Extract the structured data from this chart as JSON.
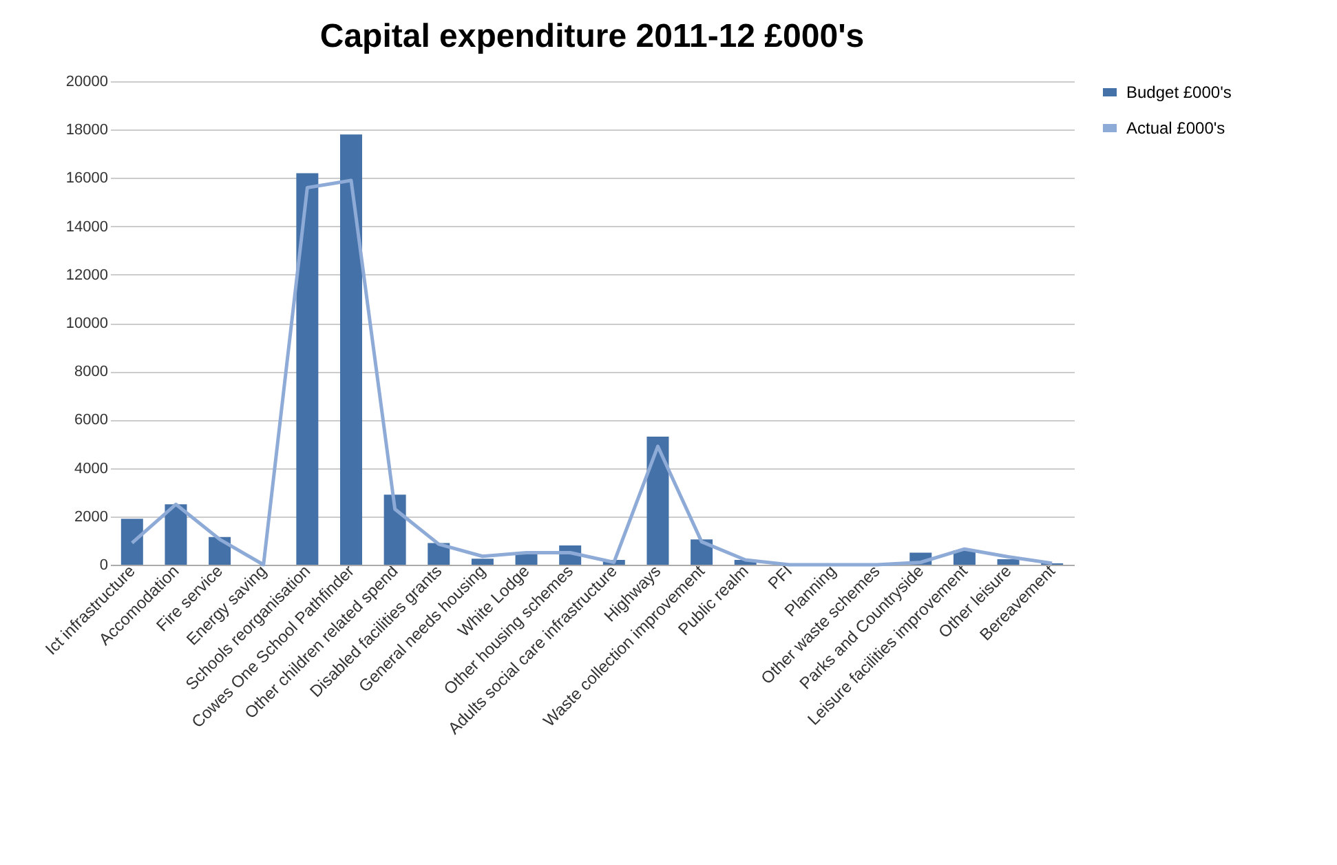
{
  "chart_data": {
    "type": "bar",
    "title": "Capital expenditure 2011-12 £000's",
    "categories": [
      "Ict infrastructure",
      "Accomodation",
      "Fire service",
      "Energy saving",
      "Schools reorganisation",
      "Cowes One School Pathfinder",
      "Other children related spend",
      "Disabled facilities grants",
      "General needs housing",
      "White Lodge",
      "Other housing schemes",
      "Adults social care infrastructure",
      "Highways",
      "Waste collection improvement",
      "Public realm",
      "PFI",
      "Planning",
      "Other waste schemes",
      "Parks and Countryside",
      "Leisure facilities improvement",
      "Other leisure",
      "Bereavement"
    ],
    "series": [
      {
        "name": "Budget £000's",
        "color": "#4472a8",
        "values": [
          1900,
          2500,
          1150,
          0,
          16200,
          17800,
          2900,
          900,
          250,
          500,
          800,
          200,
          5300,
          1050,
          200,
          0,
          0,
          0,
          500,
          600,
          230,
          60
        ]
      },
      {
        "name": "Actual £000's",
        "type": "line",
        "color": "#8eaad6",
        "values": [
          900,
          2500,
          1050,
          0,
          15600,
          15900,
          2300,
          850,
          350,
          500,
          500,
          100,
          4900,
          950,
          200,
          0,
          0,
          0,
          100,
          650,
          330,
          60
        ]
      }
    ],
    "ylim": [
      0,
      20000
    ],
    "yticks": [
      0,
      2000,
      4000,
      6000,
      8000,
      10000,
      12000,
      14000,
      16000,
      18000,
      20000
    ],
    "grid": "y",
    "legend": "right"
  }
}
